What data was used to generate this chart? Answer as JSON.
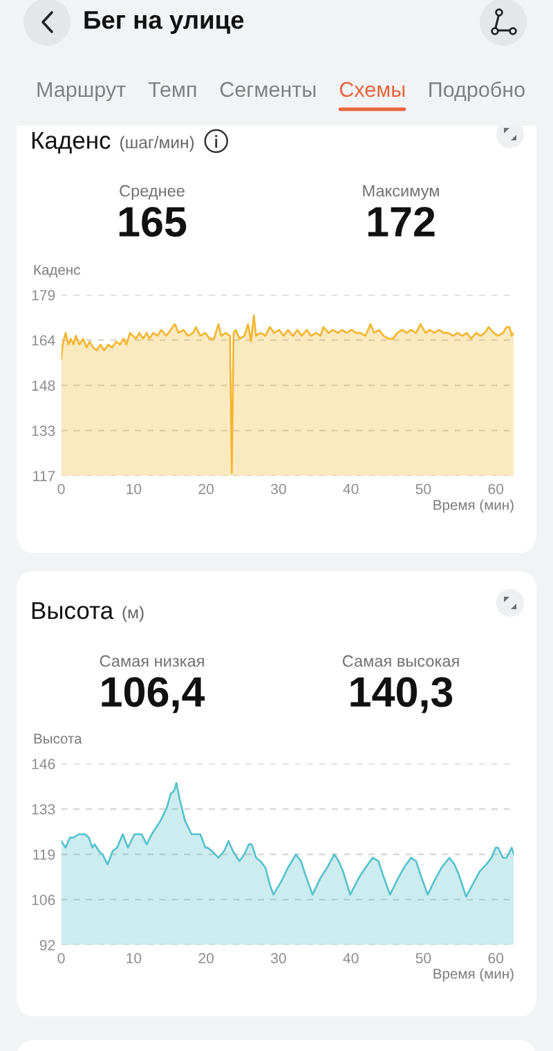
{
  "chart_data": [
    {
      "type": "other",
      "title": "Бег на улице",
      "categories": [
        "Маршрут",
        "Темп",
        "Сегменты",
        "Схемы",
        "Подробно"
      ],
      "colors": [
        null,
        null,
        null,
        "#e8643c",
        null
      ]
    },
    {
      "type": "area",
      "title": "Каденс",
      "subtitle": "(шаг/мин)",
      "ylabel": "Каденс",
      "xlabel": "Время (мин)",
      "annotations": [
        "Среднее",
        "165",
        "Максимум",
        "172"
      ],
      "x": [
        0,
        0.2,
        0.6,
        1.0,
        1.3,
        1.7,
        2.0,
        2.5,
        3.0,
        3.5,
        3.9,
        4.4,
        4.9,
        5.4,
        5.9,
        6.5,
        7.0,
        7.6,
        8.1,
        8.6,
        9.0,
        9.5,
        9.9,
        10.3,
        10.8,
        11.3,
        11.8,
        12.2,
        12.7,
        13.3,
        13.8,
        14.5,
        15.1,
        15.7,
        16.2,
        16.9,
        17.5,
        18.2,
        18.6,
        19.2,
        19.9,
        20.5,
        21.1,
        21.7,
        22.1,
        22.7,
        23.3,
        23.55,
        23.8,
        24.1,
        24.6,
        25.3,
        25.8,
        26.2,
        26.6,
        26.9,
        27.5,
        28.2,
        28.8,
        29.4,
        30.1,
        30.7,
        31.3,
        32.0,
        32.6,
        33.2,
        33.9,
        34.5,
        35.2,
        35.8,
        36.2,
        36.9,
        37.5,
        38.2,
        38.8,
        39.4,
        40.1,
        40.7,
        41.3,
        42.0,
        42.7,
        43.2,
        43.9,
        44.5,
        45.2,
        45.8,
        46.4,
        47.1,
        47.7,
        48.3,
        49.0,
        49.6,
        50.3,
        50.9,
        51.5,
        52.2,
        52.8,
        53.4,
        54.1,
        54.7,
        55.4,
        56.0,
        56.6,
        57.3,
        57.9,
        58.5,
        59.0,
        59.7,
        60.3,
        61.0,
        61.5,
        61.9,
        62.2,
        62.5
      ],
      "series": [
        {
          "color": "#f3b52f",
          "values": [
            157,
            162,
            166,
            162,
            164,
            162,
            165,
            162,
            164,
            161,
            163,
            161,
            160,
            162,
            160,
            162,
            161,
            163,
            162,
            164,
            162,
            166,
            165,
            164,
            166,
            164,
            166,
            164,
            166,
            165,
            167,
            165,
            167,
            169,
            166,
            167,
            165,
            166,
            168,
            165,
            166,
            164,
            164,
            169,
            165,
            166,
            165,
            118,
            166,
            167,
            164,
            165,
            169,
            163,
            172,
            165,
            166,
            165,
            168,
            166,
            167,
            165,
            167,
            165,
            167,
            165,
            167,
            165,
            166,
            165,
            168,
            166,
            167,
            166,
            167,
            166,
            167,
            166,
            166,
            165,
            169,
            166,
            167,
            165,
            164,
            164,
            166,
            167,
            166,
            167,
            166,
            169,
            166,
            167,
            166,
            167,
            166,
            166,
            165,
            166,
            165,
            166,
            164,
            166,
            165,
            166,
            168,
            166,
            165,
            166,
            168,
            168,
            165,
            166
          ]
        }
      ],
      "xlim": [
        0,
        62.5
      ],
      "xticks": [
        0,
        10,
        20,
        30,
        40,
        50,
        60
      ],
      "ylim": [
        117,
        179
      ],
      "yticks": [
        117,
        {
          "value": 132.5,
          "label": "133"
        },
        148,
        {
          "value": 163.5,
          "label": "164"
        },
        179
      ],
      "grid": "y"
    },
    {
      "type": "area",
      "title": "Высота",
      "subtitle": "(м)",
      "ylabel": "Высота",
      "xlabel": "Время (мин)",
      "annotations": [
        "Самая низкая",
        "106,4",
        "Самая высокая",
        "140,3"
      ],
      "x": [
        0,
        0.6,
        1.2,
        1.7,
        2.4,
        3.3,
        3.8,
        4.3,
        4.6,
        5.2,
        5.7,
        6.4,
        7.1,
        7.7,
        8.5,
        9.2,
        10.1,
        11.1,
        11.8,
        12.5,
        13.7,
        14.6,
        15.1,
        15.6,
        15.9,
        16.4,
        17.1,
        18.0,
        18.6,
        19.2,
        19.9,
        20.2,
        20.8,
        21.7,
        22.5,
        23.1,
        23.7,
        24.6,
        25.3,
        25.9,
        26.3,
        26.9,
        27.5,
        28.2,
        28.8,
        29.3,
        30.4,
        31.3,
        32.4,
        33.1,
        33.7,
        34.7,
        35.8,
        36.7,
        37.7,
        38.3,
        38.9,
        39.9,
        41.1,
        42.0,
        43.0,
        43.8,
        44.4,
        45.4,
        46.3,
        47.3,
        48.3,
        49.0,
        49.6,
        50.6,
        51.5,
        52.5,
        53.6,
        54.3,
        54.9,
        55.9,
        56.8,
        57.8,
        58.7,
        59.4,
        60.0,
        60.3,
        61.0,
        61.5,
        62.2,
        62.5
      ],
      "series": [
        {
          "color": "#55c1cc",
          "values": [
            123,
            121,
            124,
            124,
            125,
            125,
            124,
            121,
            122,
            120,
            119,
            116,
            120,
            121,
            125,
            121,
            125,
            125,
            122,
            125,
            129,
            133,
            137,
            138,
            140.3,
            135,
            129,
            125,
            125,
            125,
            121,
            121,
            120,
            118,
            120,
            123,
            120,
            117,
            119,
            122,
            122,
            118,
            117,
            115,
            110,
            107,
            111,
            115,
            119,
            117,
            113,
            107,
            112,
            115,
            119,
            117,
            114,
            107,
            112,
            115,
            118,
            117,
            113,
            107,
            111,
            115,
            118,
            117,
            113,
            107,
            111,
            115,
            118,
            116,
            113,
            106.4,
            110,
            114,
            116,
            118,
            121,
            121,
            118,
            118,
            121,
            119
          ]
        }
      ],
      "xlim": [
        0,
        62.5
      ],
      "xticks": [
        0,
        10,
        20,
        30,
        40,
        50,
        60
      ],
      "ylim": [
        92,
        146
      ],
      "yticks": [
        92,
        {
          "value": 105.5,
          "label": "106"
        },
        119,
        {
          "value": 132.5,
          "label": "133"
        },
        146
      ],
      "grid": "y"
    }
  ]
}
